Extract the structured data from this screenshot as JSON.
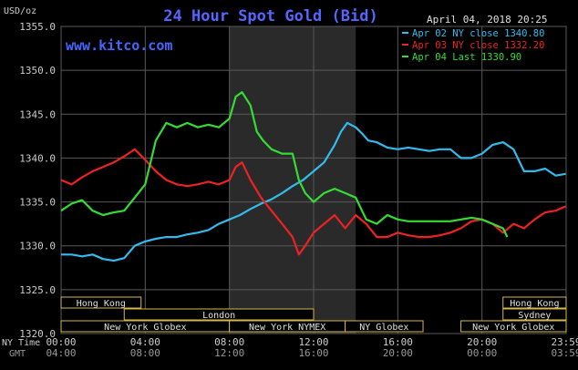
{
  "chart_data": {
    "type": "line",
    "title": "24 Hour Spot Gold (Bid)",
    "ylabel": "USD/oz",
    "website": "www.kitco.com",
    "datetime": "April 04, 2018 20:25",
    "ylim": [
      1320,
      1355
    ],
    "yticks": [
      1320,
      1325,
      1330,
      1335,
      1340,
      1345,
      1350,
      1355
    ],
    "ytick_labels": [
      "1320.0",
      "1325.0",
      "1330.0",
      "1335.0",
      "1340.0",
      "1345.0",
      "1350.0",
      "1355.0"
    ],
    "xlim": [
      0,
      24
    ],
    "xtick_hours": [
      0,
      4,
      8,
      12,
      16,
      20,
      24
    ],
    "x_row_labels": {
      "ny": "NY Time",
      "gmt": "GMT"
    },
    "x_ny_labels": [
      "00:00",
      "04:00",
      "08:00",
      "12:00",
      "16:00",
      "20:00",
      "23:59"
    ],
    "x_gmt_labels": [
      "04:00",
      "08:00",
      "12:00",
      "16:00",
      "20:00",
      "00:00",
      "03:59"
    ],
    "grid": true,
    "legend_position": "top-right",
    "colors": {
      "background": "#000000",
      "plot": "#000000",
      "grid": "#5a5a5a",
      "title": "#5566ff",
      "website": "#4466ff",
      "axis_text": "#cccccc",
      "session_box": "#d4b84a",
      "shade": "#2a2a2a"
    },
    "shade_range": [
      8,
      14
    ],
    "series": [
      {
        "name": "Apr 02 NY close 1340.80",
        "color": "#33bbee",
        "x": [
          0,
          0.5,
          1,
          1.5,
          2,
          2.5,
          3,
          3.5,
          4,
          4.5,
          5,
          5.5,
          6,
          6.5,
          7,
          7.5,
          8,
          8.5,
          9,
          9.5,
          10,
          10.5,
          11,
          11.5,
          12,
          12.5,
          13,
          13.3,
          13.6,
          14,
          14.3,
          14.6,
          15,
          15.5,
          16,
          16.5,
          17,
          17.5,
          18,
          18.5,
          19,
          19.5,
          20,
          20.5,
          21,
          21.5,
          22,
          22.5,
          23,
          23.5,
          23.98
        ],
        "values": [
          1329.0,
          1329.0,
          1328.8,
          1329.0,
          1328.5,
          1328.3,
          1328.6,
          1330.0,
          1330.5,
          1330.8,
          1331.0,
          1331.0,
          1331.3,
          1331.5,
          1331.8,
          1332.5,
          1333.0,
          1333.5,
          1334.2,
          1334.8,
          1335.3,
          1336.0,
          1336.8,
          1337.5,
          1338.5,
          1339.5,
          1341.5,
          1343.0,
          1344.0,
          1343.5,
          1342.8,
          1342.0,
          1341.8,
          1341.2,
          1341.0,
          1341.2,
          1341.0,
          1340.8,
          1341.0,
          1341.0,
          1340.0,
          1340.0,
          1340.5,
          1341.5,
          1341.8,
          1341.0,
          1338.5,
          1338.5,
          1338.8,
          1338.0,
          1338.2
        ]
      },
      {
        "name": "Apr 03 NY close 1332.20",
        "color": "#ee2222",
        "x": [
          0,
          0.5,
          1,
          1.5,
          2,
          2.5,
          3,
          3.5,
          4,
          4.5,
          5,
          5.5,
          6,
          6.5,
          7,
          7.5,
          8,
          8.3,
          8.6,
          9,
          9.5,
          10,
          10.5,
          11,
          11.3,
          11.6,
          12,
          12.5,
          13,
          13.5,
          14,
          14.5,
          15,
          15.5,
          16,
          16.5,
          17,
          17.5,
          18,
          18.5,
          19,
          19.5,
          20,
          20.5,
          21,
          21.5,
          22,
          22.5,
          23,
          23.5,
          23.98
        ],
        "values": [
          1337.5,
          1337.0,
          1337.8,
          1338.5,
          1339.0,
          1339.5,
          1340.2,
          1341.0,
          1339.8,
          1338.5,
          1337.5,
          1337.0,
          1336.8,
          1337.0,
          1337.3,
          1337.0,
          1337.5,
          1339.0,
          1339.5,
          1337.5,
          1335.5,
          1334.0,
          1332.5,
          1331.0,
          1329.0,
          1330.0,
          1331.5,
          1332.5,
          1333.5,
          1332.0,
          1333.5,
          1332.5,
          1331.0,
          1331.0,
          1331.5,
          1331.2,
          1331.0,
          1331.0,
          1331.2,
          1331.5,
          1332.0,
          1332.8,
          1333.0,
          1332.5,
          1331.5,
          1332.5,
          1332.0,
          1333.0,
          1333.8,
          1334.0,
          1334.5
        ]
      },
      {
        "name": "Apr 04 Last 1330.90",
        "color": "#33dd33",
        "x": [
          0,
          0.5,
          1,
          1.5,
          2,
          2.5,
          3,
          3.5,
          4,
          4.5,
          5,
          5.5,
          6,
          6.5,
          7,
          7.5,
          8,
          8.3,
          8.6,
          9,
          9.3,
          9.6,
          10,
          10.5,
          11,
          11.3,
          11.6,
          12,
          12.5,
          13,
          13.5,
          14,
          14.5,
          15,
          15.5,
          16,
          16.5,
          17,
          17.5,
          18,
          18.5,
          19,
          19.5,
          20,
          20.5,
          21,
          21.2
        ],
        "values": [
          1334.0,
          1334.8,
          1335.2,
          1334.0,
          1333.5,
          1333.8,
          1334.0,
          1335.5,
          1337.0,
          1342.0,
          1344.0,
          1343.5,
          1344.0,
          1343.5,
          1343.8,
          1343.5,
          1344.5,
          1347.0,
          1347.5,
          1346.0,
          1343.0,
          1342.0,
          1341.0,
          1340.5,
          1340.5,
          1337.5,
          1336.0,
          1335.0,
          1336.0,
          1336.5,
          1336.0,
          1335.5,
          1333.0,
          1332.5,
          1333.5,
          1333.0,
          1332.8,
          1332.8,
          1332.8,
          1332.8,
          1332.8,
          1333.0,
          1333.2,
          1333.0,
          1332.5,
          1332.0,
          1331.0
        ]
      }
    ],
    "sessions": [
      {
        "label": "Hong Kong",
        "start": 0,
        "end": 3.8,
        "row": 0
      },
      {
        "label": "Hong Kong",
        "start": 21.0,
        "end": 24,
        "row": 0
      },
      {
        "label": "London",
        "start": 3.0,
        "end": 12.0,
        "row": 1
      },
      {
        "label": "Sydney",
        "start": 21.0,
        "end": 24,
        "row": 1
      },
      {
        "label": "New York Globex",
        "start": 0,
        "end": 8.0,
        "row": 2
      },
      {
        "label": "New York NYMEX",
        "start": 8.0,
        "end": 13.5,
        "row": 2
      },
      {
        "label": "NY Globex",
        "start": 13.5,
        "end": 17.2,
        "row": 2
      },
      {
        "label": "New York Globex",
        "start": 19.0,
        "end": 24,
        "row": 2
      }
    ]
  }
}
